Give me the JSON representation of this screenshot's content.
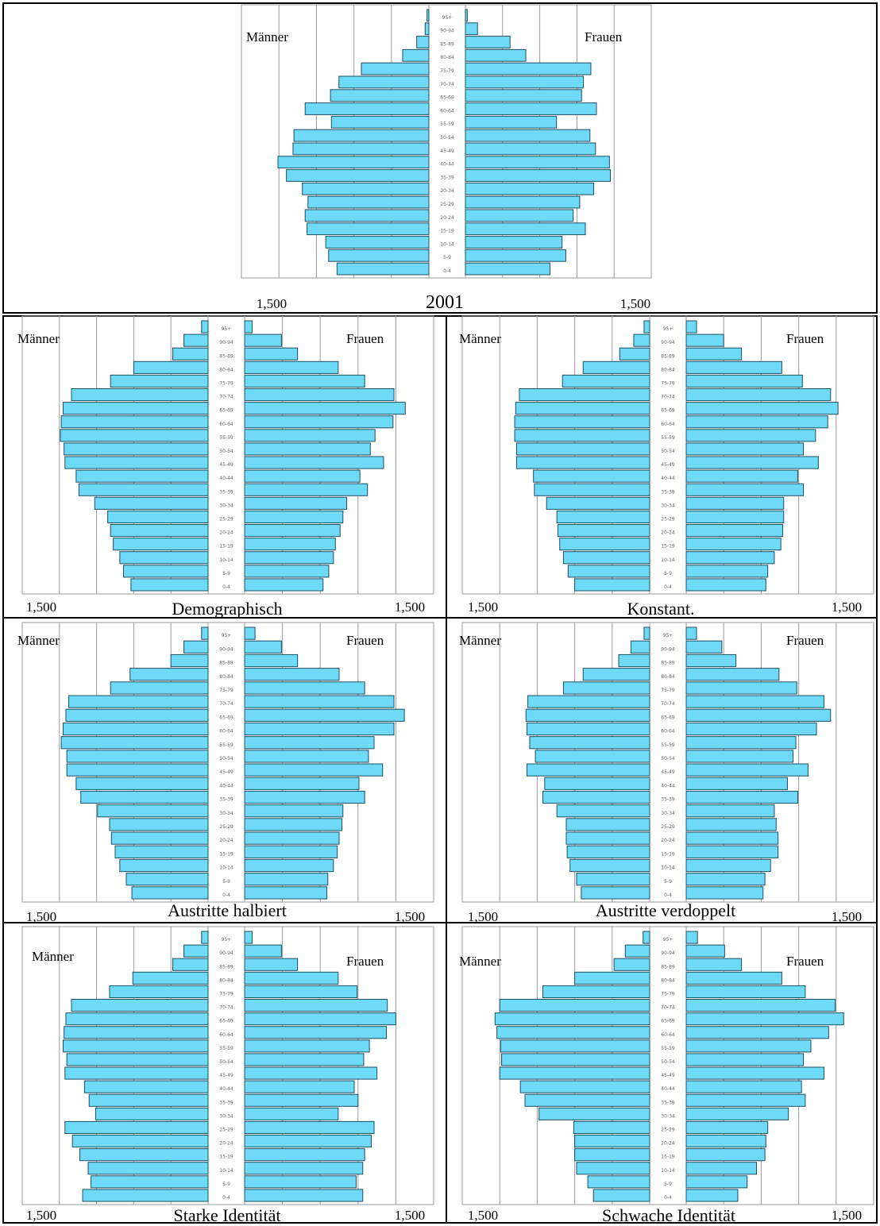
{
  "colors": {
    "bar_fill": "#6fd9f8",
    "bar_stroke": "#1c4f62",
    "grid": "#9a9a9a",
    "frame": "#000000"
  },
  "age_groups": [
    "0-4",
    "5-9",
    "10-14",
    "15-19",
    "20-24",
    "25-29",
    "30-34",
    "35-39",
    "40-44",
    "45-49",
    "50-54",
    "55-59",
    "60-64",
    "65-69",
    "70-74",
    "75-79",
    "80-84",
    "85-89",
    "90-94",
    "95+"
  ],
  "chart_data": [
    {
      "type": "bar",
      "title": "2001",
      "left_label": "Männer",
      "right_label": "Frauen",
      "left_tick": "1,500",
      "right_tick": "1,500",
      "categories": [
        "0-4",
        "5-9",
        "10-14",
        "15-19",
        "20-24",
        "25-29",
        "30-34",
        "35-39",
        "40-44",
        "45-49",
        "50-54",
        "55-59",
        "60-64",
        "65-69",
        "70-74",
        "75-79",
        "80-84",
        "85-89",
        "90-94",
        "95+"
      ],
      "series": [
        {
          "name": "Männer",
          "values": [
            980,
            1070,
            1100,
            1300,
            1320,
            1290,
            1350,
            1520,
            1610,
            1450,
            1440,
            1040,
            1320,
            1050,
            960,
            720,
            280,
            130,
            40,
            20
          ]
        },
        {
          "name": "Frauen",
          "values": [
            910,
            1080,
            1040,
            1290,
            1160,
            1230,
            1380,
            1560,
            1550,
            1400,
            1340,
            980,
            1410,
            1250,
            1270,
            1350,
            650,
            480,
            130,
            20
          ]
        }
      ]
    },
    {
      "type": "bar",
      "title": "Demographisch",
      "left_label": "Männer",
      "right_label": "Frauen",
      "left_tick": "1,500",
      "right_tick": "1,500",
      "categories": [
        "0-4",
        "5-9",
        "10-14",
        "15-19",
        "20-24",
        "25-29",
        "30-34",
        "35-39",
        "40-44",
        "45-49",
        "50-54",
        "55-59",
        "60-64",
        "65-69",
        "70-74",
        "75-79",
        "80-84",
        "85-89",
        "90-94",
        "95+"
      ],
      "series": [
        {
          "name": "Männer",
          "values": [
            830,
            910,
            950,
            1020,
            1050,
            1080,
            1220,
            1390,
            1420,
            1540,
            1550,
            1590,
            1580,
            1560,
            1470,
            1050,
            800,
            380,
            260,
            70
          ]
        },
        {
          "name": "Frauen",
          "values": [
            830,
            890,
            940,
            960,
            1010,
            1040,
            1080,
            1300,
            1220,
            1470,
            1330,
            1380,
            1570,
            1700,
            1580,
            1270,
            990,
            560,
            390,
            80
          ]
        }
      ]
    },
    {
      "type": "bar",
      "title": "Konstant.",
      "left_label": "Männer",
      "right_label": "Frauen",
      "left_tick": "1,500",
      "right_tick": "1,500",
      "categories": [
        "0-4",
        "5-9",
        "10-14",
        "15-19",
        "20-24",
        "25-29",
        "30-34",
        "35-39",
        "40-44",
        "45-49",
        "50-54",
        "55-59",
        "60-64",
        "65-69",
        "70-74",
        "75-79",
        "80-84",
        "85-89",
        "90-94",
        "95+"
      ],
      "series": [
        {
          "name": "Männer",
          "values": [
            800,
            870,
            920,
            960,
            980,
            990,
            1100,
            1230,
            1240,
            1420,
            1420,
            1440,
            1440,
            1430,
            1390,
            930,
            710,
            320,
            170,
            60
          ]
        },
        {
          "name": "Frauen",
          "values": [
            850,
            870,
            940,
            1010,
            1030,
            1040,
            1040,
            1250,
            1190,
            1410,
            1250,
            1380,
            1510,
            1620,
            1540,
            1240,
            1020,
            590,
            400,
            110
          ]
        }
      ]
    },
    {
      "type": "bar",
      "title": "Austritte halbiert",
      "left_label": "Männer",
      "right_label": "Frauen",
      "left_tick": "1,500",
      "right_tick": "1,500",
      "categories": [
        "0-4",
        "5-9",
        "10-14",
        "15-19",
        "20-24",
        "25-29",
        "30-34",
        "35-39",
        "40-44",
        "45-49",
        "50-54",
        "55-59",
        "60-64",
        "65-69",
        "70-74",
        "75-79",
        "80-84",
        "85-89",
        "90-94",
        "95+"
      ],
      "series": [
        {
          "name": "Männer",
          "values": [
            820,
            880,
            950,
            1000,
            1040,
            1060,
            1190,
            1370,
            1420,
            1520,
            1520,
            1580,
            1560,
            1530,
            1500,
            1050,
            840,
            400,
            260,
            70
          ]
        },
        {
          "name": "Frauen",
          "values": [
            870,
            880,
            940,
            980,
            1000,
            1030,
            1040,
            1270,
            1210,
            1460,
            1310,
            1370,
            1580,
            1690,
            1580,
            1270,
            1000,
            560,
            390,
            110
          ]
        }
      ]
    },
    {
      "type": "bar",
      "title": "Austritte verdoppelt",
      "left_label": "Männer",
      "right_label": "Frauen",
      "left_tick": "1,500",
      "right_tick": "1,500",
      "categories": [
        "0-4",
        "5-9",
        "10-14",
        "15-19",
        "20-24",
        "25-29",
        "30-34",
        "35-39",
        "40-44",
        "45-49",
        "50-54",
        "55-59",
        "60-64",
        "65-69",
        "70-74",
        "75-79",
        "80-84",
        "85-89",
        "90-94",
        "95+"
      ],
      "series": [
        {
          "name": "Männer",
          "values": [
            730,
            780,
            850,
            880,
            890,
            890,
            990,
            1140,
            1120,
            1310,
            1220,
            1280,
            1310,
            1320,
            1300,
            920,
            710,
            330,
            200,
            60
          ]
        },
        {
          "name": "Frauen",
          "values": [
            820,
            840,
            900,
            980,
            980,
            960,
            940,
            1190,
            1080,
            1300,
            1140,
            1170,
            1390,
            1540,
            1470,
            1180,
            990,
            530,
            380,
            110
          ]
        }
      ]
    },
    {
      "type": "bar",
      "title": "Starke Identität",
      "left_label": "Männer",
      "right_label": "Frauen",
      "left_tick": "1,500",
      "right_tick": "1,500",
      "categories": [
        "0-4",
        "5-9",
        "10-14",
        "15-19",
        "20-24",
        "25-29",
        "30-34",
        "35-39",
        "40-44",
        "45-49",
        "50-54",
        "55-59",
        "60-64",
        "65-69",
        "70-74",
        "75-79",
        "80-84",
        "85-89",
        "90-94",
        "95+"
      ],
      "series": [
        {
          "name": "Männer",
          "values": [
            1350,
            1260,
            1290,
            1380,
            1460,
            1540,
            1210,
            1280,
            1330,
            1540,
            1520,
            1560,
            1550,
            1530,
            1470,
            1060,
            810,
            380,
            260,
            70
          ]
        },
        {
          "name": "Frauen",
          "values": [
            1250,
            1180,
            1250,
            1270,
            1340,
            1370,
            990,
            1200,
            1160,
            1400,
            1260,
            1320,
            1500,
            1600,
            1510,
            1190,
            990,
            560,
            390,
            80
          ]
        }
      ]
    },
    {
      "type": "bar",
      "title": "Schwache Identität",
      "left_label": "Männer",
      "right_label": "Frauen",
      "left_tick": "1,500",
      "right_tick": "1,500",
      "categories": [
        "0-4",
        "5-9",
        "10-14",
        "15-19",
        "20-24",
        "25-29",
        "30-34",
        "35-39",
        "40-44",
        "45-49",
        "50-54",
        "55-59",
        "60-64",
        "65-69",
        "70-74",
        "75-79",
        "80-84",
        "85-89",
        "90-94",
        "95+"
      ],
      "series": [
        {
          "name": "Männer",
          "values": [
            600,
            660,
            780,
            800,
            800,
            810,
            1180,
            1330,
            1380,
            1600,
            1580,
            1590,
            1630,
            1650,
            1600,
            1140,
            800,
            380,
            260,
            70
          ]
        },
        {
          "name": "Frauen",
          "values": [
            550,
            650,
            750,
            840,
            850,
            870,
            1090,
            1270,
            1230,
            1470,
            1250,
            1330,
            1520,
            1680,
            1590,
            1270,
            1020,
            590,
            410,
            120
          ]
        }
      ]
    }
  ]
}
